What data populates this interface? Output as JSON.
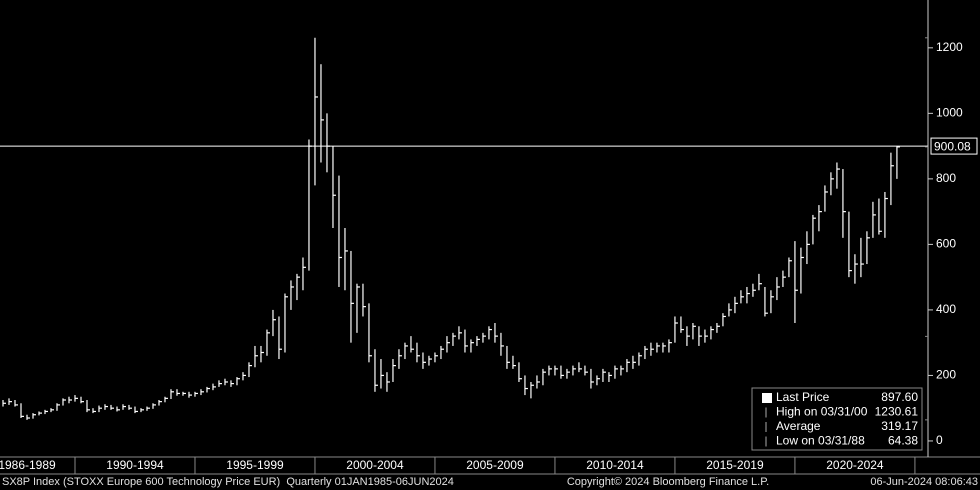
{
  "chart_data": {
    "type": "ohlc",
    "x": [
      1987,
      1987.25,
      1987.5,
      1987.75,
      1988,
      1988.25,
      1988.5,
      1988.75,
      1989,
      1989.25,
      1989.5,
      1989.75,
      1990,
      1990.25,
      1990.5,
      1990.75,
      1991,
      1991.25,
      1991.5,
      1991.75,
      1992,
      1992.25,
      1992.5,
      1992.75,
      1993,
      1993.25,
      1993.5,
      1993.75,
      1994,
      1994.25,
      1994.5,
      1994.75,
      1995,
      1995.25,
      1995.5,
      1995.75,
      1996,
      1996.25,
      1996.5,
      1996.75,
      1997,
      1997.25,
      1997.5,
      1997.75,
      1998,
      1998.25,
      1998.5,
      1998.75,
      1999,
      1999.25,
      1999.5,
      1999.75,
      2000,
      2000.25,
      2000.5,
      2000.75,
      2001,
      2001.25,
      2001.5,
      2001.75,
      2002,
      2002.25,
      2002.5,
      2002.75,
      2003,
      2003.25,
      2003.5,
      2003.75,
      2004,
      2004.25,
      2004.5,
      2004.75,
      2005,
      2005.25,
      2005.5,
      2005.75,
      2006,
      2006.25,
      2006.5,
      2006.75,
      2007,
      2007.25,
      2007.5,
      2007.75,
      2008,
      2008.25,
      2008.5,
      2008.75,
      2009,
      2009.25,
      2009.5,
      2009.75,
      2010,
      2010.25,
      2010.5,
      2010.75,
      2011,
      2011.25,
      2011.5,
      2011.75,
      2012,
      2012.25,
      2012.5,
      2012.75,
      2013,
      2013.25,
      2013.5,
      2013.75,
      2014,
      2014.25,
      2014.5,
      2014.75,
      2015,
      2015.25,
      2015.5,
      2015.75,
      2016,
      2016.25,
      2016.5,
      2016.75,
      2017,
      2017.25,
      2017.5,
      2017.75,
      2018,
      2018.25,
      2018.5,
      2018.75,
      2019,
      2019.25,
      2019.5,
      2019.75,
      2020,
      2020.25,
      2020.5,
      2020.75,
      2021,
      2021.25,
      2021.5,
      2021.75,
      2022,
      2022.25,
      2022.5,
      2022.75,
      2023,
      2023.25,
      2023.5,
      2023.75,
      2024,
      2024.25
    ],
    "high": [
      125,
      130,
      125,
      115,
      80,
      85,
      90,
      95,
      100,
      115,
      130,
      135,
      140,
      135,
      125,
      100,
      108,
      112,
      110,
      105,
      112,
      110,
      105,
      100,
      105,
      115,
      125,
      135,
      158,
      158,
      150,
      150,
      150,
      158,
      165,
      175,
      185,
      190,
      185,
      195,
      210,
      240,
      290,
      290,
      340,
      400,
      380,
      450,
      490,
      510,
      560,
      920,
      1230.61,
      1150,
      1000,
      900,
      810,
      650,
      580,
      480,
      480,
      420,
      280,
      250,
      210,
      250,
      280,
      300,
      320,
      300,
      270,
      260,
      270,
      290,
      320,
      330,
      350,
      340,
      310,
      320,
      330,
      350,
      360,
      330,
      290,
      260,
      240,
      200,
      180,
      200,
      220,
      230,
      230,
      230,
      220,
      230,
      240,
      230,
      220,
      200,
      220,
      210,
      230,
      230,
      250,
      260,
      270,
      290,
      300,
      300,
      300,
      310,
      380,
      380,
      350,
      360,
      350,
      340,
      350,
      360,
      390,
      420,
      440,
      460,
      470,
      480,
      510,
      470,
      460,
      500,
      520,
      560,
      610,
      590,
      640,
      690,
      720,
      780,
      820,
      850,
      830,
      700,
      570,
      620,
      640,
      730,
      740,
      760,
      880,
      900
    ],
    "low": [
      105,
      110,
      105,
      70,
      64.38,
      68,
      78,
      82,
      88,
      92,
      108,
      115,
      120,
      115,
      88,
      85,
      88,
      95,
      95,
      90,
      95,
      95,
      85,
      88,
      92,
      98,
      108,
      118,
      128,
      138,
      138,
      132,
      135,
      140,
      148,
      155,
      165,
      170,
      165,
      170,
      185,
      195,
      225,
      240,
      260,
      320,
      250,
      270,
      400,
      430,
      460,
      520,
      780,
      850,
      820,
      650,
      470,
      460,
      300,
      330,
      380,
      240,
      150,
      160,
      150,
      180,
      220,
      250,
      270,
      240,
      220,
      230,
      240,
      250,
      270,
      290,
      310,
      270,
      270,
      290,
      300,
      310,
      300,
      260,
      220,
      220,
      180,
      140,
      130,
      160,
      170,
      200,
      200,
      190,
      190,
      200,
      210,
      200,
      160,
      170,
      180,
      180,
      190,
      200,
      210,
      220,
      230,
      250,
      260,
      270,
      270,
      270,
      300,
      330,
      290,
      310,
      290,
      300,
      310,
      330,
      350,
      380,
      390,
      420,
      420,
      440,
      460,
      380,
      390,
      430,
      470,
      500,
      360,
      450,
      540,
      600,
      640,
      700,
      750,
      770,
      620,
      500,
      480,
      500,
      540,
      620,
      630,
      620,
      720,
      800
    ],
    "close": [
      115,
      120,
      110,
      75,
      70,
      80,
      85,
      90,
      95,
      110,
      125,
      125,
      130,
      120,
      95,
      90,
      100,
      105,
      100,
      95,
      105,
      100,
      90,
      95,
      100,
      110,
      120,
      130,
      150,
      145,
      145,
      140,
      145,
      150,
      160,
      165,
      175,
      180,
      175,
      190,
      200,
      230,
      260,
      270,
      330,
      370,
      280,
      440,
      470,
      500,
      530,
      900,
      1050,
      980,
      900,
      750,
      560,
      580,
      420,
      470,
      410,
      260,
      170,
      200,
      180,
      230,
      260,
      290,
      280,
      260,
      240,
      250,
      260,
      280,
      300,
      320,
      330,
      290,
      300,
      310,
      320,
      340,
      320,
      290,
      240,
      230,
      190,
      160,
      170,
      180,
      210,
      220,
      220,
      200,
      210,
      220,
      220,
      210,
      180,
      190,
      210,
      200,
      220,
      220,
      240,
      240,
      260,
      280,
      280,
      290,
      290,
      300,
      360,
      340,
      320,
      350,
      320,
      320,
      340,
      350,
      380,
      400,
      420,
      440,
      450,
      460,
      480,
      390,
      440,
      470,
      500,
      550,
      460,
      560,
      600,
      680,
      700,
      760,
      800,
      830,
      700,
      520,
      540,
      540,
      620,
      690,
      640,
      740,
      840,
      897.6
    ],
    "color": "#ffffff",
    "xlim": [
      1986.875,
      2025.42
    ],
    "xticks": [
      {
        "value": 1988,
        "label": "1986-1989"
      },
      {
        "value": 1992.5,
        "label": "1990-1994"
      },
      {
        "value": 1997.5,
        "label": "1995-1999"
      },
      {
        "value": 2002.5,
        "label": "2000-2004"
      },
      {
        "value": 2007.5,
        "label": "2005-2009"
      },
      {
        "value": 2012.5,
        "label": "2010-2014"
      },
      {
        "value": 2017.5,
        "label": "2015-2019"
      },
      {
        "value": 2022.5,
        "label": "2020-2024"
      }
    ],
    "xbounds": [
      1990,
      1995,
      2000,
      2005,
      2010,
      2015,
      2020,
      2025
    ],
    "ylim": [
      -49,
      1346
    ],
    "yticks": [
      0,
      200,
      400,
      600,
      800,
      1000,
      1200
    ],
    "reference_line": 900.08,
    "legend": [
      {
        "name": "Last Price",
        "value": 897.6,
        "label": "897.60"
      },
      {
        "name": "High on 03/31/00",
        "value": 1230.61,
        "label": "1230.61"
      },
      {
        "name": "Average",
        "value": 319.17,
        "label": "319.17"
      },
      {
        "name": "Low on 03/31/88",
        "value": 64.38,
        "label": "64.38"
      }
    ],
    "footer_left": "SX8P Index (STOXX Europe 600 Technology Price EUR)  Quarterly 01JAN1985-06JUN2024",
    "footer_center": "Copyright© 2024 Bloomberg Finance L.P.",
    "footer_right": "06-Jun-2024 08:06:43"
  }
}
